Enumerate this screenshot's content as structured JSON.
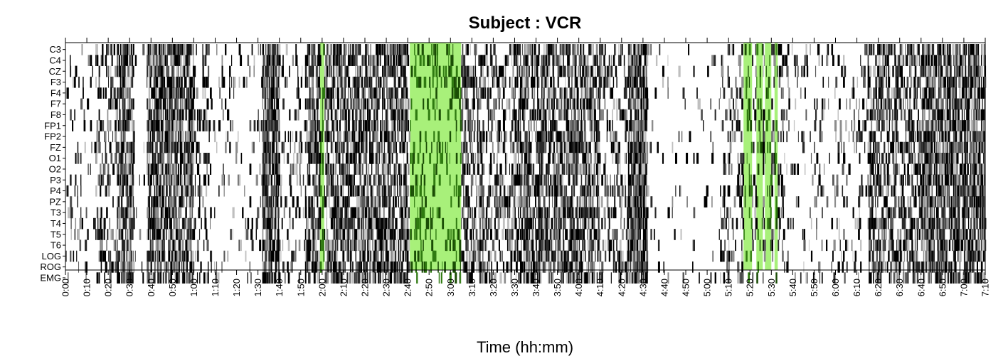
{
  "chart_data": {
    "type": "heatmap",
    "title": "Subject : VCR",
    "xlabel": "Time (hh:mm)",
    "ylabel": "",
    "channels": [
      "C3",
      "C4",
      "CZ",
      "F3",
      "F4",
      "F7",
      "F8",
      "FP1",
      "FP2",
      "FZ",
      "O1",
      "O2",
      "P3",
      "P4",
      "PZ",
      "T3",
      "T4",
      "T5",
      "T6",
      "LOG",
      "ROG",
      "EMG"
    ],
    "x_ticks": [
      "0:00",
      "0:10",
      "0:20",
      "0:30",
      "0:40",
      "0:50",
      "1:00",
      "1:10",
      "1:20",
      "1:30",
      "1:40",
      "1:50",
      "2:00",
      "2:10",
      "2:20",
      "2:30",
      "2:40",
      "2:50",
      "3:00",
      "3:10",
      "3:20",
      "3:30",
      "3:40",
      "3:50",
      "4:00",
      "4:10",
      "4:20",
      "4:30",
      "4:40",
      "4:50",
      "5:00",
      "5:10",
      "5:20",
      "5:30",
      "5:40",
      "5:50",
      "6:00",
      "6:10",
      "6:20",
      "6:30",
      "6:40",
      "6:50",
      "7:00",
      "7:10"
    ],
    "xlim_minutes": [
      0,
      430
    ],
    "highlight_color": "#a8f07a",
    "highlight_intervals_minutes": [
      [
        119,
        121
      ],
      [
        161,
        185
      ],
      [
        317,
        321
      ],
      [
        323,
        326
      ],
      [
        327,
        330
      ],
      [
        331.5,
        333
      ]
    ],
    "activity_segments_minutes": [
      {
        "start": 0,
        "end": 14,
        "density": 0.12
      },
      {
        "start": 14,
        "end": 24,
        "density": 0.3
      },
      {
        "start": 24,
        "end": 32,
        "density": 0.75
      },
      {
        "start": 32,
        "end": 38,
        "density": 0.05
      },
      {
        "start": 38,
        "end": 60,
        "density": 0.7
      },
      {
        "start": 60,
        "end": 68,
        "density": 0.25
      },
      {
        "start": 68,
        "end": 92,
        "density": 0.12
      },
      {
        "start": 92,
        "end": 100,
        "density": 0.8
      },
      {
        "start": 100,
        "end": 112,
        "density": 0.15
      },
      {
        "start": 112,
        "end": 122,
        "density": 0.55
      },
      {
        "start": 122,
        "end": 160,
        "density": 0.65
      },
      {
        "start": 160,
        "end": 186,
        "density": 0.35
      },
      {
        "start": 186,
        "end": 195,
        "density": 0.5
      },
      {
        "start": 195,
        "end": 210,
        "density": 0.35
      },
      {
        "start": 210,
        "end": 250,
        "density": 0.62
      },
      {
        "start": 250,
        "end": 263,
        "density": 0.3
      },
      {
        "start": 263,
        "end": 272,
        "density": 0.85
      },
      {
        "start": 272,
        "end": 306,
        "density": 0.04
      },
      {
        "start": 306,
        "end": 316,
        "density": 0.22
      },
      {
        "start": 316,
        "end": 336,
        "density": 0.3
      },
      {
        "start": 336,
        "end": 375,
        "density": 0.12
      },
      {
        "start": 375,
        "end": 400,
        "density": 0.5
      },
      {
        "start": 400,
        "end": 430,
        "density": 0.72
      }
    ],
    "grayscale_levels": [
      "#000000",
      "#2a2a2a",
      "#595959",
      "#8c8c8c",
      "#bfbfbf"
    ],
    "grid": false,
    "legend": "none"
  }
}
